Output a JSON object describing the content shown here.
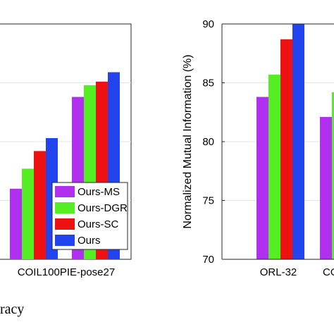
{
  "chart_data": [
    {
      "type": "bar",
      "categories": [
        "",
        "COIL100PIE-pose27"
      ],
      "series": [
        {
          "name": "Ours-MS",
          "color": "#b030f0",
          "values": [
            null,
            83.8
          ]
        },
        {
          "name": "Ours-DGR",
          "color": "#55ee22",
          "values": [
            null,
            84.8
          ]
        },
        {
          "name": "Ours-SC",
          "color": "#ee1111",
          "values": [
            null,
            85.1
          ]
        },
        {
          "name": "Ours",
          "color": "#2244ee",
          "values": [
            null,
            85.9
          ]
        }
      ],
      "left_values": [
        76.0,
        77.7,
        79.2,
        80.3
      ],
      "ylim": [
        70,
        90
      ],
      "legend": "lower-right",
      "grid": true,
      "caption": "racy"
    },
    {
      "type": "bar",
      "categories": [
        "ORL-32",
        "CO"
      ],
      "ylabel": "Normalized Mutual Information (%)",
      "yticks": [
        "70",
        "75",
        "80",
        "85",
        "90"
      ],
      "ylim": [
        70,
        90
      ],
      "series": [
        {
          "name": "Ours-MS",
          "color": "#b030f0",
          "values": [
            83.8,
            82.1
          ]
        },
        {
          "name": "Ours-DGR",
          "color": "#55ee22",
          "values": [
            85.7,
            84.2
          ]
        },
        {
          "name": "Ours-SC",
          "color": "#ee1111",
          "values": [
            88.7,
            null
          ]
        },
        {
          "name": "Ours",
          "color": "#2244ee",
          "values": [
            90.0,
            null
          ]
        }
      ],
      "grid": true
    }
  ]
}
